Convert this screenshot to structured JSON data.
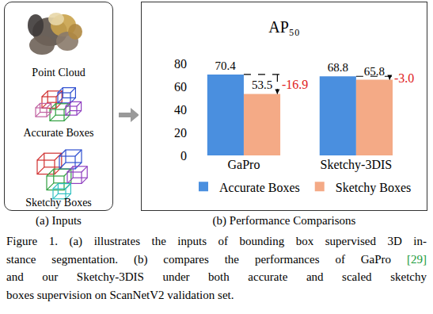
{
  "chart_data": {
    "type": "bar",
    "title": "AP₅₀",
    "categories": [
      "GaPro",
      "Sketchy-3DIS"
    ],
    "series": [
      {
        "name": "Accurate Boxes",
        "color": "#4a8fdf",
        "values": [
          70.4,
          68.8
        ]
      },
      {
        "name": "Sketchy Boxes",
        "color": "#f4aa86",
        "values": [
          53.5,
          65.8
        ]
      }
    ],
    "ylim": [
      0,
      80
    ],
    "yticks": [
      0,
      20,
      40,
      60,
      80
    ],
    "grid": false,
    "data_labels": true,
    "legend": "bottom",
    "annotations": [
      {
        "category": "GaPro",
        "text": "-16.9",
        "color": "#e02020"
      },
      {
        "category": "Sketchy-3DIS",
        "text": "-3.0",
        "color": "#e02020"
      }
    ]
  },
  "figure": {
    "panels": {
      "a": "(a) Inputs",
      "b": "(b) Performance Comparisons"
    },
    "inputs": [
      "Point Cloud",
      "Accurate Boxes",
      "Sketchy Boxes"
    ],
    "caption": [
      "Figure 1. (a) illustrates the inputs of bounding box supervised 3D in-",
      "stance segmentation. (b) compares the performances of GaPro [29]",
      "and our Sketchy-3DIS under both accurate and scaled sketchy",
      "boxes supervision on ScanNetV2 validation set."
    ]
  }
}
